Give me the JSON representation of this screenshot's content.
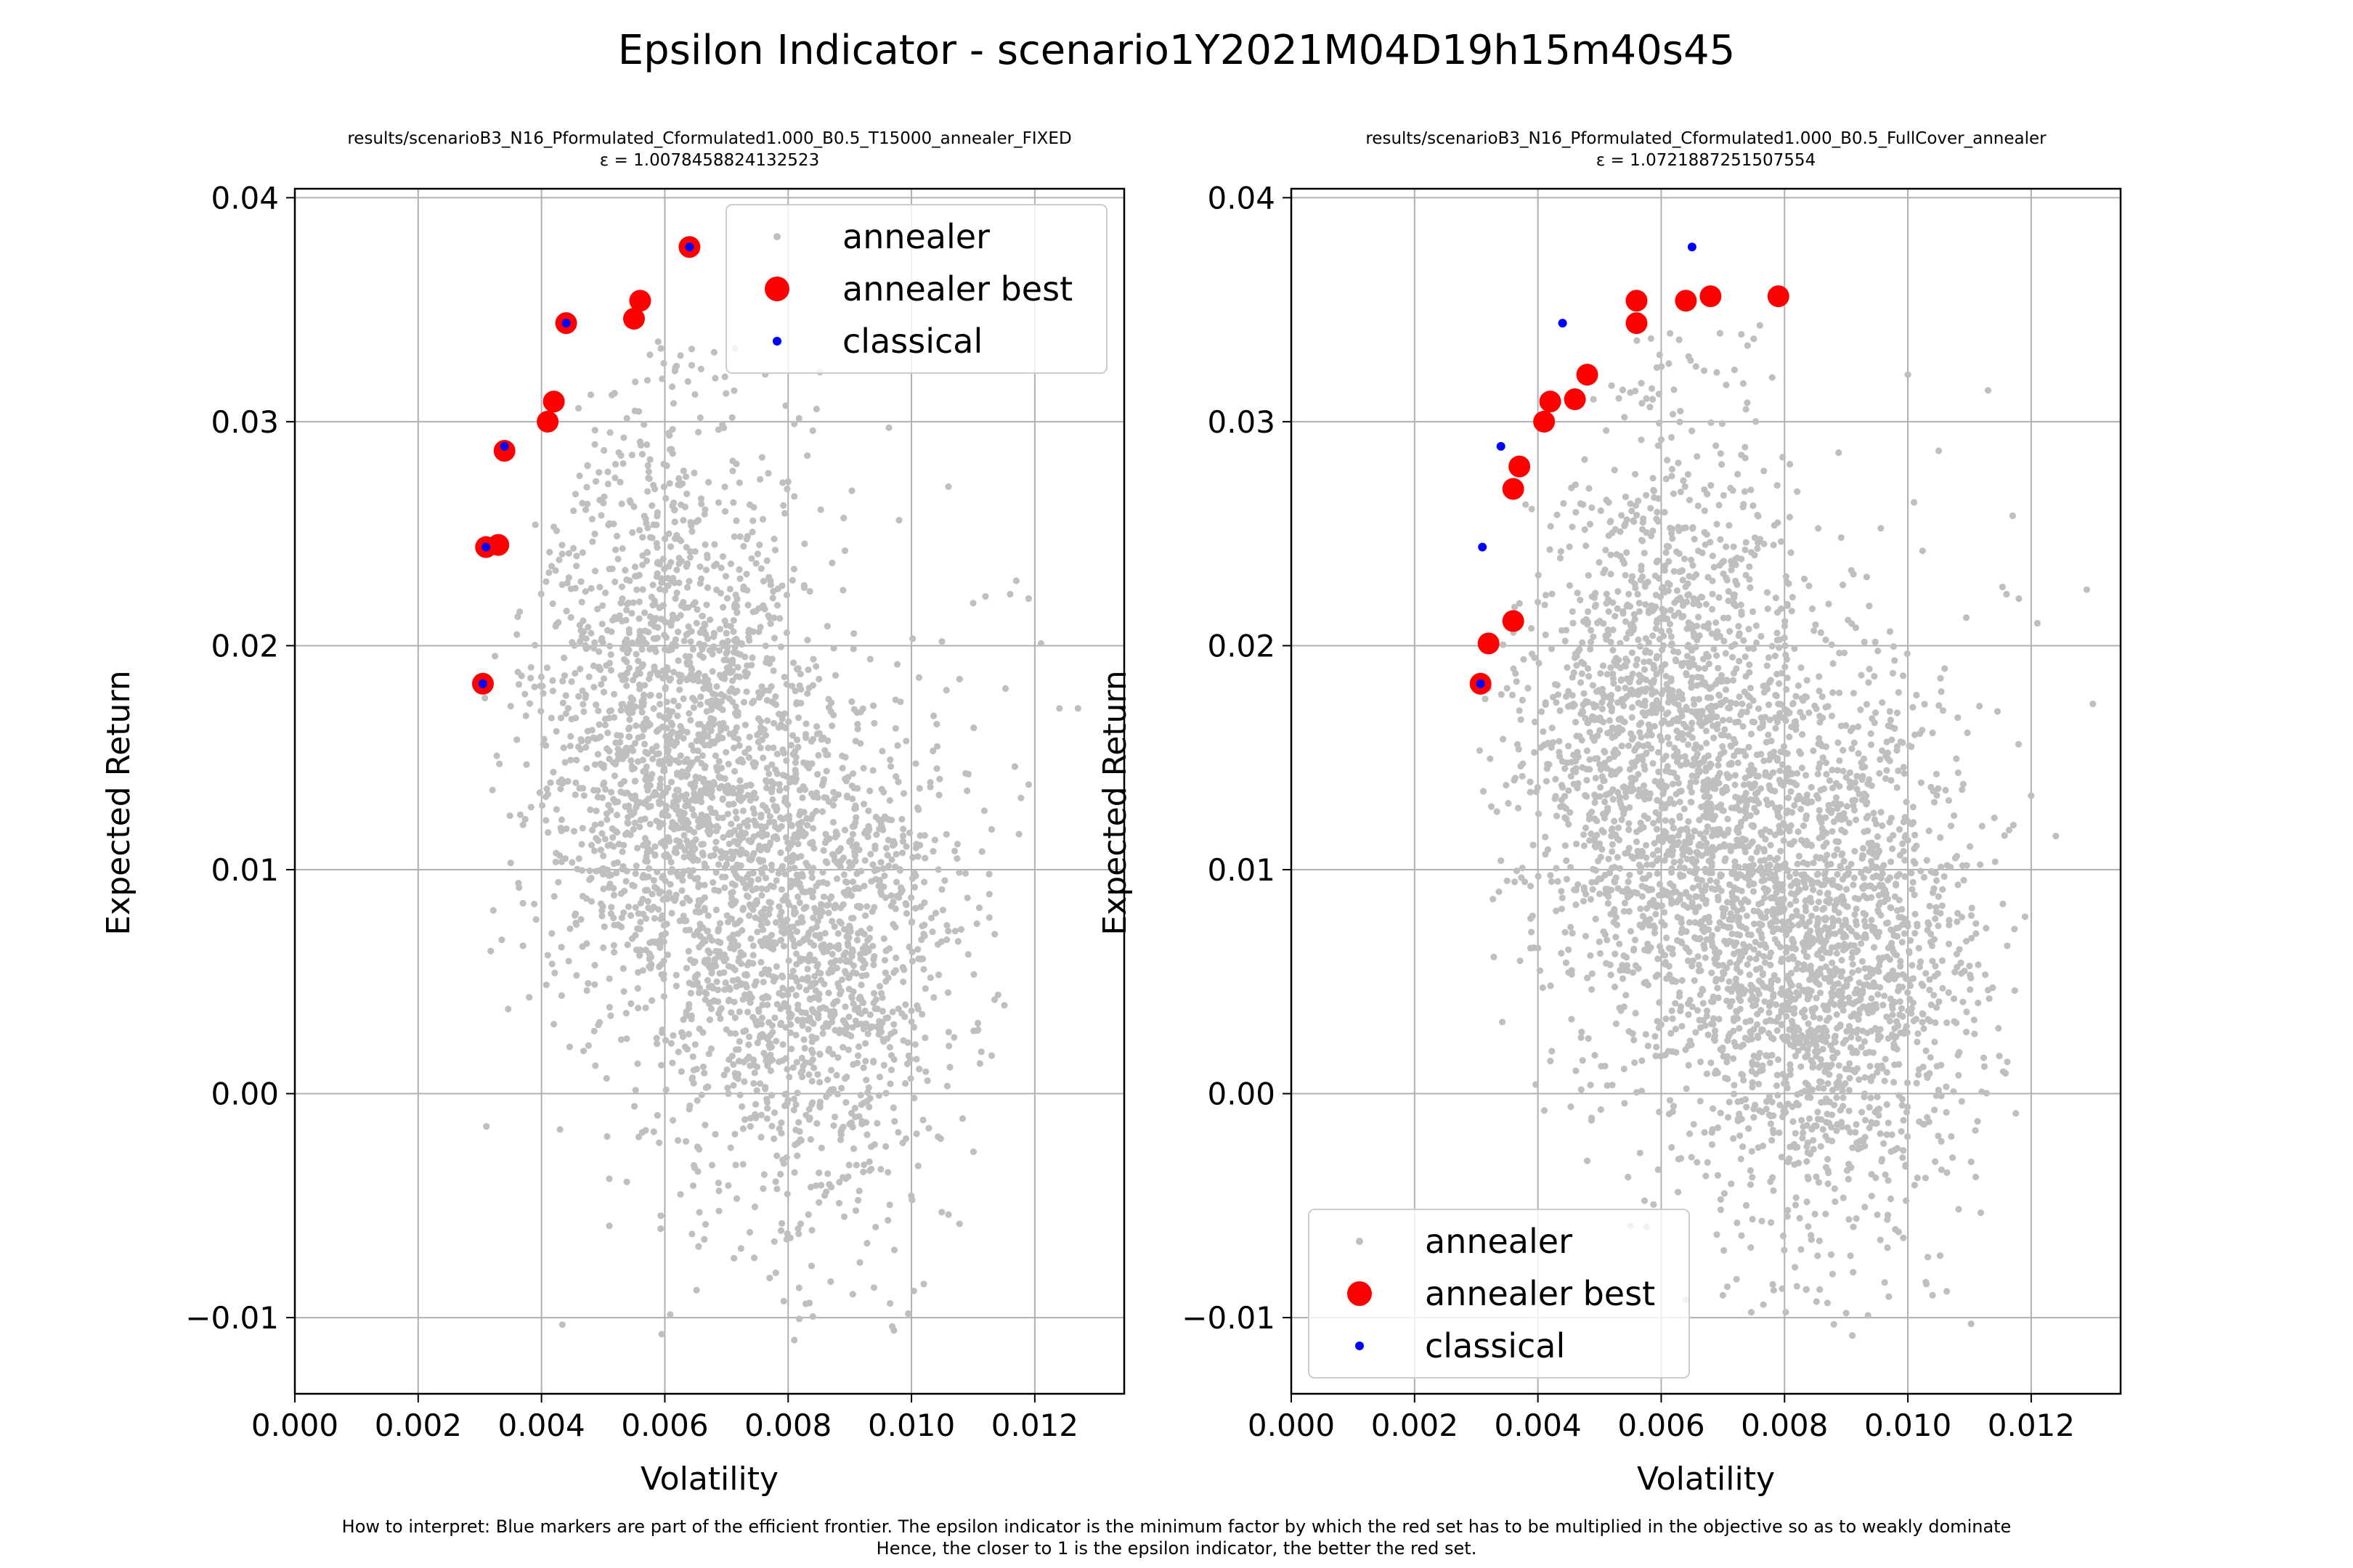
{
  "figure": {
    "title": "Epsilon Indicator - scenario1Y2021M04D19h15m40s45",
    "caption_line1": "How to interpret: Blue markers are part of the efficient frontier. The epsilon indicator is the minimum factor by which the red set has to be multiplied in the objective so as to weakly dominate",
    "caption_line2": "Hence, the closer to 1 is the epsilon indicator, the better the red set."
  },
  "colors": {
    "annealer": "#bfbfbf",
    "annealer_best": "#ff0000",
    "classical": "#0000ff",
    "grid": "#b0b0b0"
  },
  "chart_data": [
    {
      "type": "scatter",
      "title": "results/scenarioB3_N16_Pformulated_Cformulated1.000_B0.5_T15000_annealer_FIXED",
      "subtitle": "ε = 1.0078458824132523",
      "xlabel": "Volatility",
      "ylabel": "Expected Return",
      "xlim": [
        0.0,
        0.01345
      ],
      "ylim": [
        -0.0134,
        0.0404
      ],
      "xticks": [
        "0.000",
        "0.002",
        "0.004",
        "0.006",
        "0.008",
        "0.010",
        "0.012"
      ],
      "xtick_values": [
        0.0,
        0.002,
        0.004,
        0.006,
        0.008,
        0.01,
        0.012
      ],
      "yticks": [
        "−0.01",
        "0.00",
        "0.01",
        "0.02",
        "0.03",
        "0.04"
      ],
      "ytick_values": [
        -0.01,
        0.0,
        0.01,
        0.02,
        0.03,
        0.04
      ],
      "grid": true,
      "legend_position": "upper right",
      "legend": [
        "annealer",
        "annealer best",
        "classical"
      ],
      "series": [
        {
          "name": "annealer",
          "points": [
            [
              0.0068,
              0.0331
            ],
            [
              0.0081,
              0.0299
            ],
            [
              0.0084,
              0.0296
            ],
            [
              0.0089,
              0.0257
            ],
            [
              0.0098,
              0.0256
            ],
            [
              0.0106,
              0.0271
            ],
            [
              0.011,
              0.0219
            ],
            [
              0.0112,
              0.0222
            ],
            [
              0.0117,
              0.0229
            ],
            [
              0.0116,
              0.0223
            ],
            [
              0.0119,
              0.0221
            ],
            [
              0.0124,
              0.0172
            ],
            [
              0.0127,
              0.0172
            ],
            [
              0.0121,
              0.0201
            ],
            [
              0.0119,
              0.0138
            ],
            [
              0.0113,
              0.0118
            ],
            [
              0.0111,
              0.0083
            ],
            [
              0.0113,
              0.0017
            ],
            [
              0.0106,
              -0.0054
            ],
            [
              0.0102,
              -0.0085
            ],
            [
              0.0078,
              -0.008
            ],
            [
              0.0081,
              -0.011
            ],
            [
              0.0051,
              -0.0038
            ],
            [
              0.0051,
              -0.0059
            ],
            [
              0.0043,
              -0.0016
            ],
            [
              0.0042,
              0.0031
            ],
            [
              0.0038,
              0.0043
            ],
            [
              0.0037,
              0.012
            ],
            [
              0.0035,
              0.0103
            ],
            [
              0.0037,
              0.0066
            ],
            [
              0.0039,
              0.0254
            ],
            [
              0.0042,
              0.0253
            ],
            [
              0.0046,
              0.0306
            ],
            [
              0.0048,
              0.0312
            ],
            [
              0.0052,
              0.0281
            ],
            [
              0.0056,
              0.0291
            ],
            [
              0.0036,
              0.0205
            ],
            [
              0.0035,
              0.0173
            ],
            [
              0.0036,
              0.0158
            ],
            [
              0.0037,
              0.0085
            ]
          ],
          "cloud": {
            "count": 3200,
            "seed": 7,
            "clusters": [
              {
                "cx": 0.0061,
                "cy": 0.016,
                "sx": 0.0011,
                "sy": 0.0068,
                "w": 0.55
              },
              {
                "cx": 0.0084,
                "cy": 0.0065,
                "sx": 0.0012,
                "sy": 0.006,
                "w": 0.45
              }
            ]
          }
        },
        {
          "name": "annealer best",
          "points": [
            [
              0.00305,
              0.0183
            ],
            [
              0.0031,
              0.0244
            ],
            [
              0.0033,
              0.0245
            ],
            [
              0.0034,
              0.0287
            ],
            [
              0.0041,
              0.03
            ],
            [
              0.0042,
              0.0309
            ],
            [
              0.0044,
              0.0344
            ],
            [
              0.0055,
              0.0346
            ],
            [
              0.0056,
              0.0354
            ],
            [
              0.0064,
              0.0378
            ]
          ]
        },
        {
          "name": "classical",
          "points": [
            [
              0.00305,
              0.0183
            ],
            [
              0.0031,
              0.0244
            ],
            [
              0.0034,
              0.0289
            ],
            [
              0.0044,
              0.0344
            ],
            [
              0.0064,
              0.0378
            ]
          ]
        }
      ]
    },
    {
      "type": "scatter",
      "title": "results/scenarioB3_N16_Pformulated_Cformulated1.000_B0.5_FullCover_annealer",
      "subtitle": "ε = 1.0721887251507554",
      "xlabel": "Volatility",
      "ylabel": "Expected Return",
      "xlim": [
        0.0,
        0.01345
      ],
      "ylim": [
        -0.0134,
        0.0404
      ],
      "xticks": [
        "0.000",
        "0.002",
        "0.004",
        "0.006",
        "0.008",
        "0.010",
        "0.012"
      ],
      "xtick_values": [
        0.0,
        0.002,
        0.004,
        0.006,
        0.008,
        0.01,
        0.012
      ],
      "yticks": [
        "−0.01",
        "0.00",
        "0.01",
        "0.02",
        "0.03",
        "0.04"
      ],
      "ytick_values": [
        -0.01,
        0.0,
        0.01,
        0.02,
        0.03,
        0.04
      ],
      "grid": true,
      "legend_position": "lower left",
      "legend": [
        "annealer",
        "annealer best",
        "classical"
      ],
      "series": [
        {
          "name": "annealer",
          "points": [
            [
              0.0073,
              0.0339
            ],
            [
              0.0074,
              0.0334
            ],
            [
              0.0075,
              0.0337
            ],
            [
              0.0076,
              0.0343
            ],
            [
              0.0069,
              0.0322
            ],
            [
              0.01,
              0.0321
            ],
            [
              0.0101,
              0.0264
            ],
            [
              0.0105,
              0.0287
            ],
            [
              0.0113,
              0.0314
            ],
            [
              0.0117,
              0.0258
            ],
            [
              0.0116,
              0.0223
            ],
            [
              0.0118,
              0.0221
            ],
            [
              0.0121,
              0.021
            ],
            [
              0.0129,
              0.0225
            ],
            [
              0.013,
              0.0174
            ],
            [
              0.0124,
              0.0115
            ],
            [
              0.012,
              0.0133
            ],
            [
              0.0119,
              0.0079
            ],
            [
              0.011,
              0.0057
            ],
            [
              0.0104,
              -0.009
            ],
            [
              0.0103,
              -0.0085
            ],
            [
              0.009,
              -0.0098
            ],
            [
              0.0091,
              -0.0108
            ],
            [
              0.0088,
              -0.0103
            ],
            [
              0.0082,
              -0.0086
            ],
            [
              0.007,
              -0.009
            ],
            [
              0.0064,
              -0.0092
            ],
            [
              0.0055,
              -0.0059
            ],
            [
              0.0048,
              -0.003
            ],
            [
              0.0047,
              0.0025
            ],
            [
              0.004,
              0.0065
            ],
            [
              0.0035,
              0.0095
            ],
            [
              0.0034,
              0.0104
            ],
            [
              0.0037,
              0.0171
            ],
            [
              0.0035,
              0.0181
            ],
            [
              0.0038,
              0.0263
            ],
            [
              0.0039,
              0.0261
            ],
            [
              0.0049,
              0.031
            ],
            [
              0.0055,
              0.0313
            ],
            [
              0.006,
              0.0292
            ]
          ],
          "cloud": {
            "count": 3800,
            "seed": 11,
            "clusters": [
              {
                "cx": 0.0061,
                "cy": 0.015,
                "sx": 0.0012,
                "sy": 0.007,
                "w": 0.52
              },
              {
                "cx": 0.0087,
                "cy": 0.006,
                "sx": 0.0012,
                "sy": 0.006,
                "w": 0.48
              }
            ]
          }
        },
        {
          "name": "annealer best",
          "points": [
            [
              0.00307,
              0.0183
            ],
            [
              0.0032,
              0.0201
            ],
            [
              0.0036,
              0.0211
            ],
            [
              0.0036,
              0.027
            ],
            [
              0.0037,
              0.028
            ],
            [
              0.0041,
              0.03
            ],
            [
              0.0042,
              0.0309
            ],
            [
              0.0046,
              0.031
            ],
            [
              0.0048,
              0.0321
            ],
            [
              0.0056,
              0.0344
            ],
            [
              0.0056,
              0.0354
            ],
            [
              0.0064,
              0.0354
            ],
            [
              0.0068,
              0.0356
            ],
            [
              0.0079,
              0.0356
            ]
          ]
        },
        {
          "name": "classical",
          "points": [
            [
              0.00307,
              0.0183
            ],
            [
              0.0031,
              0.0244
            ],
            [
              0.0034,
              0.0289
            ],
            [
              0.0044,
              0.0344
            ],
            [
              0.0065,
              0.0378
            ]
          ]
        }
      ]
    }
  ]
}
